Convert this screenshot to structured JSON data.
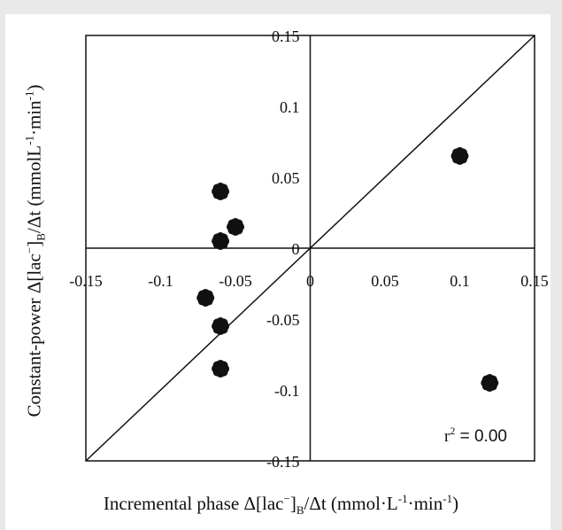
{
  "chart_data": {
    "type": "scatter",
    "xlim": [
      -0.15,
      0.15
    ],
    "ylim": [
      -0.15,
      0.15
    ],
    "x_ticks": [
      -0.15,
      -0.1,
      -0.05,
      0,
      0.05,
      0.1,
      0.15
    ],
    "y_ticks": [
      -0.15,
      -0.1,
      -0.05,
      0,
      0.05,
      0.1,
      0.15
    ],
    "x_tick_labels": [
      "-0.15",
      "-0.1",
      "-0.05",
      "0",
      "0.05",
      "0.1",
      "0.15"
    ],
    "y_tick_labels": [
      "-0.15",
      "-0.1",
      "-0.05",
      "0",
      "0.05",
      "0.1",
      "0.15"
    ],
    "identity_line": true,
    "grid": false,
    "annotation": "r² = 0.00",
    "xlabel": "Incremental phase Δ[lac⁻]B/Δt (mmol·L⁻¹·min⁻¹)",
    "ylabel": "Constant-power Δ[lac⁻]B/Δt (mmolL⁻¹·min⁻¹)",
    "x": [
      -0.06,
      -0.05,
      -0.06,
      -0.07,
      -0.06,
      -0.06,
      0.1,
      0.12
    ],
    "y": [
      0.04,
      0.015,
      0.005,
      -0.035,
      -0.055,
      -0.085,
      0.065,
      -0.095
    ],
    "marker_color": "#111111"
  },
  "labels": {
    "x_main": "Incremental phase Δ[lac",
    "x_sup1": "−",
    "x_mid": "]",
    "x_sub": "B",
    "x_rest": "/Δt (mmol·L",
    "x_sup2": "-1",
    "x_min": "·min",
    "x_sup3": "-1",
    "x_close": ")",
    "y_main": "Constant-power Δ[lac",
    "y_sup1": "−",
    "y_mid": "]",
    "y_sub": "B",
    "y_rest": "/Δt (mmolL",
    "y_sup2": "-1",
    "y_min": "·min",
    "y_sup3": "-1",
    "y_close": ")",
    "r_text": "r",
    "r_sup": "2",
    "r_value": " = 0.00"
  }
}
